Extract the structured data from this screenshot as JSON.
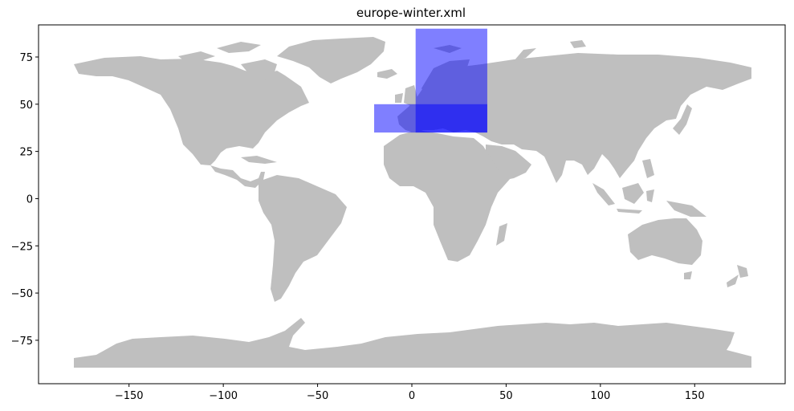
{
  "chart_data": {
    "type": "map",
    "title": "europe-winter.xml",
    "xlabel": "",
    "ylabel": "",
    "xlim": [
      -198,
      198
    ],
    "ylim": [
      -98,
      92
    ],
    "grid": false,
    "xticks": [
      -150,
      -100,
      -50,
      0,
      50,
      100,
      150
    ],
    "yticks": [
      75,
      50,
      25,
      0,
      -25,
      -50,
      -75
    ],
    "xtick_labels": [
      "−150",
      "−100",
      "−50",
      "0",
      "50",
      "100",
      "150"
    ],
    "ytick_labels": [
      "75",
      "50",
      "25",
      "0",
      "−25",
      "−50",
      "−75"
    ],
    "land_color": "#bfbfbf",
    "highlight_color": "#0000ff",
    "highlight_opacity": 0.5,
    "regions": [
      {
        "lon_min": 2,
        "lon_max": 40,
        "lat_min": 35,
        "lat_max": 90
      },
      {
        "lon_min": -20,
        "lon_max": 40,
        "lat_min": 35,
        "lat_max": 50
      }
    ]
  }
}
